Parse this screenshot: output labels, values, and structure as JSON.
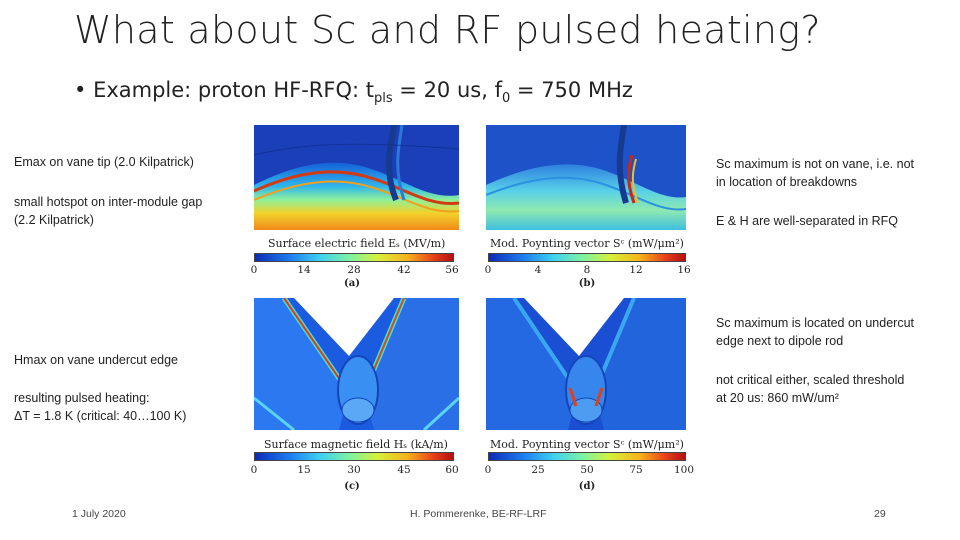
{
  "slide": {
    "title": "What about Sc and RF pulsed heating?",
    "bullet": {
      "marker": "•",
      "text_before": "Example: proton HF-RFQ: t",
      "sub_pls": "pls",
      "text_mid": " = 20 us, f",
      "sub_0": "0",
      "text_after": " = 750 MHz"
    }
  },
  "notes_left": {
    "emax": "Emax on vane tip (2.0 Kilpatrick)",
    "hotspot_1": "small hotspot on inter-module gap",
    "hotspot_2": "(2.2 Kilpatrick)",
    "hmax": "Hmax on vane undercut edge",
    "heating_1": "resulting pulsed heating:",
    "heating_2": "ΔT = 1.8 K (critical: 40…100 K)"
  },
  "notes_right": {
    "sc_not_vane_1": "Sc maximum is not on vane, i.e. not",
    "sc_not_vane_2": "in location of breakdowns",
    "eh_separated": "E & H are well-separated in RFQ",
    "sc_undercut_1": "Sc maximum is located on undercut",
    "sc_undercut_2": "edge next to dipole rod",
    "not_critical_1": "not critical either, scaled threshold",
    "not_critical_2": "at 20 us: 860 mW/um²"
  },
  "panels": {
    "a": {
      "title": "Surface electric field Eₛ (MV/m)",
      "ticks": [
        "0",
        "14",
        "28",
        "42",
        "56"
      ],
      "label": "(a)"
    },
    "b": {
      "title": "Mod. Poynting vector Sᶜ (mW/μm²)",
      "ticks": [
        "0",
        "4",
        "8",
        "12",
        "16"
      ],
      "label": "(b)"
    },
    "c": {
      "title": "Surface magnetic field Hₛ (kA/m)",
      "ticks": [
        "0",
        "15",
        "30",
        "45",
        "60"
      ],
      "label": "(c)"
    },
    "d": {
      "title": "Mod. Poynting vector Sᶜ (mW/μm²)",
      "ticks": [
        "0",
        "25",
        "50",
        "75",
        "100"
      ],
      "label": "(d)"
    }
  },
  "footer": {
    "date": "1 July 2020",
    "author": "H. Pommerenke, BE-RF-LRF",
    "page": "29"
  }
}
